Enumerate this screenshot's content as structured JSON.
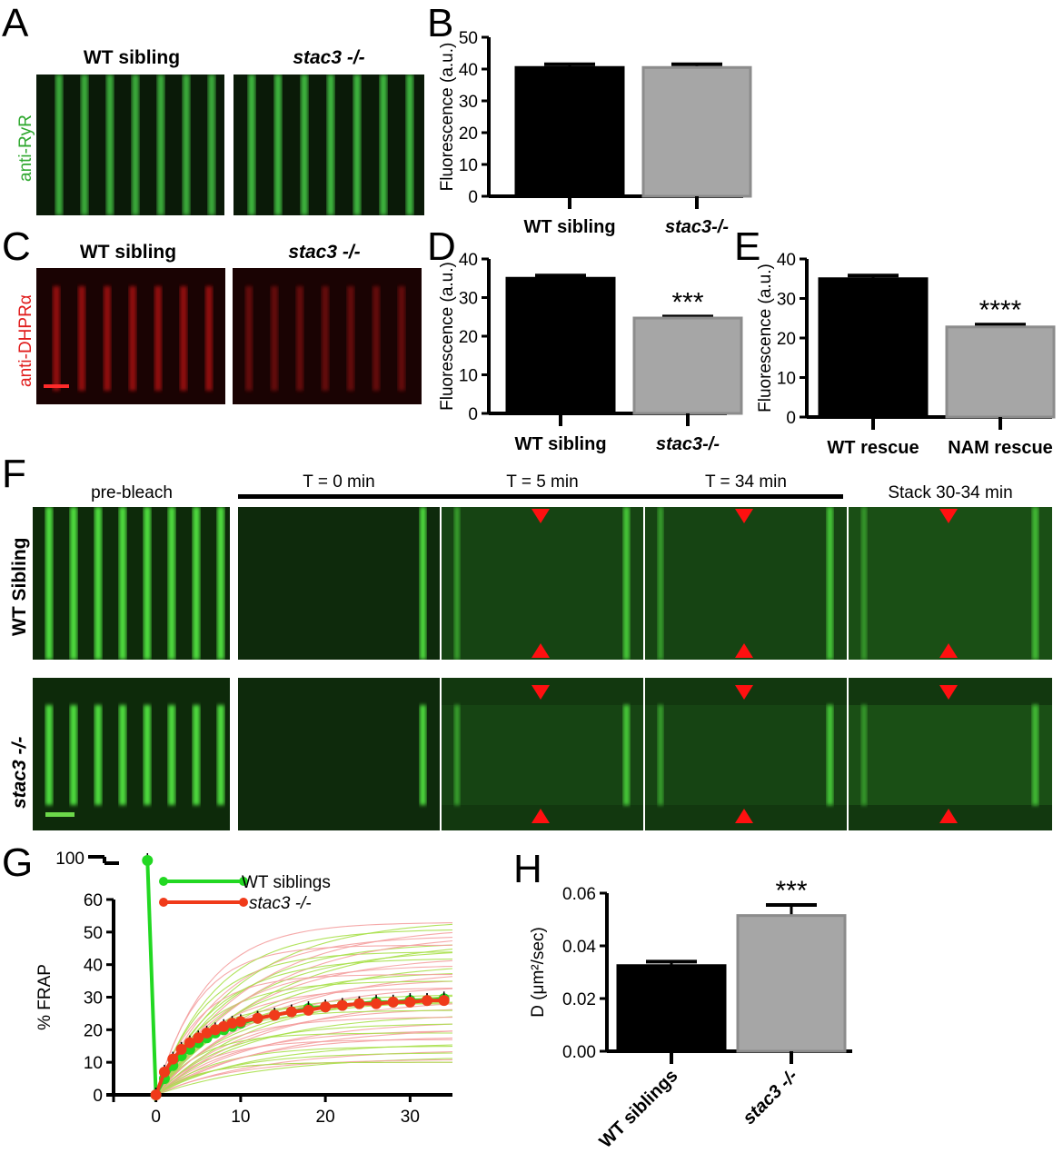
{
  "panels": {
    "A": {
      "letter": "A",
      "col_labels": [
        "WT sibling",
        "stac3 -/-"
      ],
      "stain": "anti-RyR",
      "stain_color": "#2fa82f"
    },
    "C": {
      "letter": "C",
      "col_labels": [
        "WT sibling",
        "stac3 -/-"
      ],
      "stain": "anti-DHPRα",
      "stain_color": "#e01c1c"
    },
    "F": {
      "letter": "F",
      "headers": [
        "pre-bleach",
        "T = 0 min",
        "T = 5 min",
        "T = 34 min",
        "Stack 30-34 min"
      ],
      "rows": [
        "WT Sibling",
        "stac3 -/-"
      ]
    }
  },
  "chart_data": [
    {
      "id": "B",
      "letter": "B",
      "type": "bar",
      "categories": [
        "WT sibling",
        "stac3-/-"
      ],
      "italic_categories": [
        false,
        true
      ],
      "values": [
        40.5,
        40.5
      ],
      "errors": [
        1.0,
        1.0
      ],
      "colors": [
        "#000000",
        "#a6a6a6"
      ],
      "ylabel": "Fluorescence (a.u.)",
      "ylim": [
        0,
        50
      ],
      "yticks": [
        0,
        10,
        20,
        30,
        40,
        50
      ],
      "significance": [
        "",
        ""
      ]
    },
    {
      "id": "D",
      "letter": "D",
      "type": "bar",
      "categories": [
        "WT sibling",
        "stac3-/-"
      ],
      "italic_categories": [
        false,
        true
      ],
      "values": [
        35.0,
        24.7
      ],
      "errors": [
        0.7,
        0.4
      ],
      "colors": [
        "#000000",
        "#a6a6a6"
      ],
      "ylabel": "Fluorescence (a.u.)",
      "ylim": [
        0,
        40
      ],
      "yticks": [
        0,
        10,
        20,
        30,
        40
      ],
      "significance": [
        "",
        "***"
      ]
    },
    {
      "id": "E",
      "letter": "E",
      "type": "bar",
      "categories": [
        "WT rescue",
        "NAM rescue"
      ],
      "italic_categories": [
        false,
        false
      ],
      "values": [
        35.0,
        22.8
      ],
      "errors": [
        0.8,
        0.6
      ],
      "colors": [
        "#000000",
        "#a6a6a6"
      ],
      "ylabel": "Fluorescence (a.u.)",
      "ylim": [
        0,
        40
      ],
      "yticks": [
        0,
        10,
        20,
        30,
        40
      ],
      "significance": [
        "",
        "****"
      ]
    },
    {
      "id": "G",
      "letter": "G",
      "type": "line",
      "ylabel": "% FRAP",
      "xlim": [
        -5,
        35
      ],
      "ylim": [
        0,
        60
      ],
      "xticks": [
        0,
        10,
        20,
        30
      ],
      "yticks": [
        0,
        10,
        20,
        30,
        40,
        50,
        60
      ],
      "ybreak_tick": 100,
      "legend": {
        "position": "top",
        "entries": [
          "WT siblings",
          "stac3 -/-"
        ]
      },
      "series": [
        {
          "name": "WT siblings",
          "color": "#22d822",
          "x": [
            -1,
            0,
            1,
            2,
            3,
            4,
            5,
            6,
            7,
            8,
            9,
            10,
            12,
            14,
            16,
            18,
            20,
            22,
            24,
            26,
            28,
            30,
            32,
            34
          ],
          "y": [
            100,
            0,
            5,
            9,
            12,
            14,
            16,
            17.5,
            19,
            20,
            21,
            22,
            23.5,
            24.5,
            25.5,
            26.5,
            27,
            27.5,
            28,
            28.5,
            28.5,
            29,
            29,
            29.5
          ]
        },
        {
          "name": "stac3 -/-",
          "color": "#f03a1a",
          "x": [
            0,
            1,
            2,
            3,
            4,
            5,
            6,
            7,
            8,
            9,
            10,
            12,
            14,
            16,
            18,
            20,
            22,
            24,
            26,
            28,
            30,
            32,
            34
          ],
          "y": [
            0,
            7,
            11,
            14,
            16,
            17.5,
            19,
            20,
            21,
            22,
            22.5,
            23.5,
            24.5,
            25.5,
            26,
            27,
            27.5,
            28,
            28,
            28.5,
            28.5,
            29,
            29
          ]
        }
      ]
    },
    {
      "id": "H",
      "letter": "H",
      "type": "bar",
      "categories": [
        "WT siblings",
        "stac3 -/-"
      ],
      "italic_categories": [
        false,
        true
      ],
      "values": [
        0.0325,
        0.0515
      ],
      "errors": [
        0.0015,
        0.004
      ],
      "colors": [
        "#000000",
        "#a6a6a6"
      ],
      "ylabel": "D (μm²/sec)",
      "ylim": [
        0,
        0.06
      ],
      "yticks": [
        "0.00",
        "0.02",
        "0.04",
        "0.06"
      ],
      "ytick_values": [
        0,
        0.02,
        0.04,
        0.06
      ],
      "significance": [
        "",
        "***"
      ]
    }
  ]
}
